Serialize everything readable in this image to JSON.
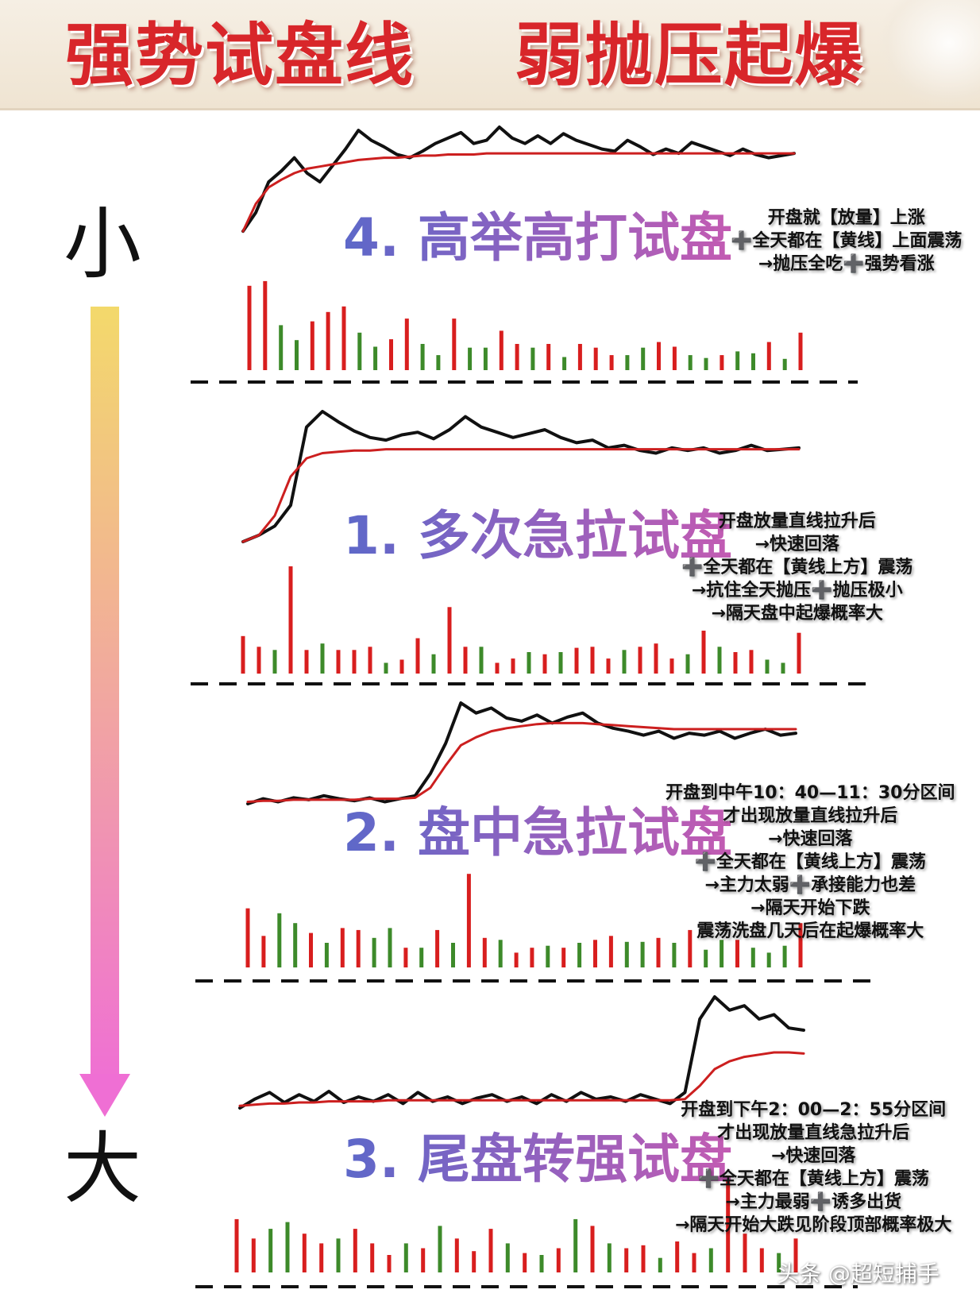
{
  "header": {
    "title_left": "强势试盘线",
    "title_right": "弱抛压起爆"
  },
  "scale": {
    "top_label": "小",
    "bottom_label": "大",
    "gradient_colors": [
      "#f3d96b",
      "#f1a7a0",
      "#ef6fd4"
    ]
  },
  "colors": {
    "price_line": "#111111",
    "avg_line": "#cc1f1f",
    "vol_up": "#d81e1e",
    "vol_down": "#3d8a2a",
    "heading_gradient": [
      "#5d68c9",
      "#c35bb2"
    ]
  },
  "chart_data": [
    {
      "type": "line",
      "heading": "4. 高举高打试盘",
      "notes": [
        "开盘就【放量】上涨",
        "➕全天都在【黄线】上面震荡",
        "→抛压全吃➕强势看涨"
      ],
      "series": [
        {
          "kind": "price",
          "values": [
            5,
            22,
            50,
            60,
            72,
            58,
            50,
            65,
            80,
            97,
            88,
            82,
            75,
            72,
            78,
            85,
            90,
            95,
            85,
            88,
            100,
            90,
            85,
            92,
            85,
            94,
            88,
            84,
            80,
            78,
            88,
            82,
            75,
            80,
            76,
            86,
            82,
            78,
            74,
            80,
            75,
            72,
            74,
            76
          ]
        },
        {
          "kind": "avg",
          "values": [
            5,
            30,
            45,
            52,
            58,
            62,
            64,
            66,
            68,
            70,
            71,
            72,
            72,
            73,
            74,
            74,
            75,
            75,
            75,
            76,
            76,
            76,
            76,
            76,
            76,
            76,
            76,
            76,
            76,
            76,
            76,
            76,
            76,
            76,
            76,
            76,
            76,
            76,
            76,
            76,
            76,
            76,
            76,
            76
          ]
        }
      ],
      "volume": [
        {
          "v": 90,
          "up": true
        },
        {
          "v": 95,
          "up": true
        },
        {
          "v": 48,
          "up": false
        },
        {
          "v": 32,
          "up": false
        },
        {
          "v": 52,
          "up": true
        },
        {
          "v": 62,
          "up": true
        },
        {
          "v": 68,
          "up": true
        },
        {
          "v": 40,
          "up": false
        },
        {
          "v": 25,
          "up": false
        },
        {
          "v": 33,
          "up": true
        },
        {
          "v": 55,
          "up": true
        },
        {
          "v": 28,
          "up": false
        },
        {
          "v": 16,
          "up": false
        },
        {
          "v": 55,
          "up": true
        },
        {
          "v": 24,
          "up": false
        },
        {
          "v": 24,
          "up": false
        },
        {
          "v": 42,
          "up": true
        },
        {
          "v": 28,
          "up": true
        },
        {
          "v": 24,
          "up": false
        },
        {
          "v": 28,
          "up": true
        },
        {
          "v": 14,
          "up": false
        },
        {
          "v": 28,
          "up": true
        },
        {
          "v": 24,
          "up": true
        },
        {
          "v": 16,
          "up": true
        },
        {
          "v": 16,
          "up": false
        },
        {
          "v": 24,
          "up": false
        },
        {
          "v": 30,
          "up": true
        },
        {
          "v": 25,
          "up": true
        },
        {
          "v": 16,
          "up": false
        },
        {
          "v": 13,
          "up": false
        },
        {
          "v": 16,
          "up": true
        },
        {
          "v": 20,
          "up": false
        },
        {
          "v": 18,
          "up": false
        },
        {
          "v": 30,
          "up": true
        },
        {
          "v": 12,
          "up": false
        },
        {
          "v": 40,
          "up": true
        }
      ]
    },
    {
      "type": "line",
      "heading": "1. 多次急拉试盘",
      "notes": [
        "开盘放量直线拉升后",
        "→快速回落",
        "➕全天都在【黄线上方】震荡",
        "→抗住全天抛压➕抛压极小",
        "→隔天盘中起爆概率大"
      ],
      "series": [
        {
          "kind": "price",
          "values": [
            0,
            5,
            12,
            28,
            88,
            100,
            92,
            85,
            80,
            78,
            82,
            84,
            79,
            86,
            96,
            88,
            84,
            80,
            83,
            86,
            80,
            76,
            78,
            72,
            74,
            70,
            68,
            72,
            70,
            72,
            68,
            70,
            74,
            70,
            71,
            72
          ]
        },
        {
          "kind": "avg",
          "values": [
            0,
            5,
            20,
            50,
            64,
            68,
            69,
            70,
            70,
            71,
            71,
            71,
            71,
            71,
            71,
            71,
            71,
            71,
            71,
            71,
            71,
            71,
            71,
            71,
            71,
            71,
            71,
            71,
            71,
            71,
            71,
            71,
            71,
            71,
            71,
            71
          ]
        }
      ],
      "volume": [
        {
          "v": 35,
          "up": true
        },
        {
          "v": 25,
          "up": true
        },
        {
          "v": 22,
          "up": false
        },
        {
          "v": 100,
          "up": true
        },
        {
          "v": 22,
          "up": true
        },
        {
          "v": 28,
          "up": false
        },
        {
          "v": 22,
          "up": true
        },
        {
          "v": 22,
          "up": true
        },
        {
          "v": 25,
          "up": true
        },
        {
          "v": 10,
          "up": false
        },
        {
          "v": 13,
          "up": true
        },
        {
          "v": 33,
          "up": true
        },
        {
          "v": 18,
          "up": false
        },
        {
          "v": 62,
          "up": true
        },
        {
          "v": 25,
          "up": true
        },
        {
          "v": 25,
          "up": false
        },
        {
          "v": 10,
          "up": true
        },
        {
          "v": 14,
          "up": true
        },
        {
          "v": 20,
          "up": false
        },
        {
          "v": 18,
          "up": true
        },
        {
          "v": 20,
          "up": false
        },
        {
          "v": 24,
          "up": true
        },
        {
          "v": 25,
          "up": true
        },
        {
          "v": 14,
          "up": true
        },
        {
          "v": 22,
          "up": false
        },
        {
          "v": 25,
          "up": true
        },
        {
          "v": 28,
          "up": true
        },
        {
          "v": 14,
          "up": true
        },
        {
          "v": 18,
          "up": false
        },
        {
          "v": 40,
          "up": true
        },
        {
          "v": 25,
          "up": false
        },
        {
          "v": 20,
          "up": true
        },
        {
          "v": 22,
          "up": true
        },
        {
          "v": 13,
          "up": false
        },
        {
          "v": 10,
          "up": false
        },
        {
          "v": 38,
          "up": true
        }
      ]
    },
    {
      "type": "line",
      "heading": "2. 盘中急拉试盘",
      "notes": [
        "开盘到中午10：40—11：30分区间",
        "才出现放量直线拉升后",
        "→快速回落",
        "➕全天都在【黄线上方】震荡",
        "→主力太弱➕承接能力也差",
        "→隔天开始下跌",
        "震荡洗盘几天后在起爆概率大"
      ],
      "series": [
        {
          "kind": "price",
          "values": [
            0,
            5,
            2,
            6,
            4,
            8,
            5,
            3,
            6,
            2,
            5,
            8,
            30,
            60,
            100,
            90,
            95,
            85,
            82,
            88,
            80,
            86,
            90,
            80,
            75,
            72,
            68,
            72,
            65,
            70,
            68,
            72,
            65,
            70,
            74,
            68,
            70
          ]
        },
        {
          "kind": "avg",
          "values": [
            2,
            3,
            3,
            4,
            4,
            4,
            4,
            4,
            5,
            5,
            5,
            6,
            16,
            38,
            58,
            66,
            72,
            75,
            77,
            79,
            80,
            80,
            80,
            79,
            78,
            77,
            76,
            75,
            74,
            74,
            74,
            74,
            74,
            74,
            74,
            74,
            74
          ]
        }
      ],
      "volume": [
        {
          "v": 60,
          "up": true
        },
        {
          "v": 32,
          "up": true
        },
        {
          "v": 55,
          "up": false
        },
        {
          "v": 45,
          "up": false
        },
        {
          "v": 35,
          "up": true
        },
        {
          "v": 25,
          "up": false
        },
        {
          "v": 40,
          "up": true
        },
        {
          "v": 38,
          "up": true
        },
        {
          "v": 30,
          "up": false
        },
        {
          "v": 40,
          "up": false
        },
        {
          "v": 20,
          "up": true
        },
        {
          "v": 20,
          "up": false
        },
        {
          "v": 38,
          "up": true
        },
        {
          "v": 25,
          "up": false
        },
        {
          "v": 95,
          "up": true
        },
        {
          "v": 30,
          "up": true
        },
        {
          "v": 28,
          "up": false
        },
        {
          "v": 15,
          "up": true
        },
        {
          "v": 20,
          "up": true
        },
        {
          "v": 22,
          "up": false
        },
        {
          "v": 20,
          "up": true
        },
        {
          "v": 25,
          "up": false
        },
        {
          "v": 28,
          "up": true
        },
        {
          "v": 32,
          "up": true
        },
        {
          "v": 26,
          "up": false
        },
        {
          "v": 26,
          "up": false
        },
        {
          "v": 30,
          "up": true
        },
        {
          "v": 25,
          "up": false
        },
        {
          "v": 38,
          "up": true
        },
        {
          "v": 18,
          "up": false
        },
        {
          "v": 28,
          "up": false
        },
        {
          "v": 28,
          "up": true
        },
        {
          "v": 20,
          "up": false
        },
        {
          "v": 15,
          "up": false
        },
        {
          "v": 22,
          "up": false
        },
        {
          "v": 45,
          "up": true
        }
      ]
    },
    {
      "type": "line",
      "heading": "3. 尾盘转强试盘",
      "notes": [
        "开盘到下午2：00—2：55分区间",
        "才出现放量直线急拉升后",
        "→快速回落",
        "➕全天都在【黄线上方】震荡",
        "→主力最弱➕诱多出货",
        "→隔天开始大跌见阶段顶部概率极大"
      ],
      "series": [
        {
          "kind": "price",
          "values": [
            0,
            8,
            14,
            5,
            12,
            6,
            15,
            5,
            10,
            6,
            12,
            4,
            14,
            6,
            10,
            4,
            9,
            12,
            6,
            10,
            4,
            12,
            6,
            14,
            8,
            10,
            6,
            12,
            8,
            4,
            14,
            80,
            100,
            88,
            92,
            80,
            84,
            72,
            70
          ]
        },
        {
          "kind": "avg",
          "values": [
            2,
            3,
            4,
            4,
            5,
            5,
            6,
            6,
            6,
            6,
            7,
            7,
            7,
            7,
            7,
            7,
            7,
            7,
            7,
            7,
            7,
            7,
            7,
            7,
            7,
            7,
            7,
            7,
            7,
            7,
            8,
            20,
            35,
            42,
            46,
            48,
            50,
            50,
            49
          ]
        }
      ],
      "volume": [
        {
          "v": 55,
          "up": true
        },
        {
          "v": 35,
          "up": true
        },
        {
          "v": 45,
          "up": false
        },
        {
          "v": 52,
          "up": false
        },
        {
          "v": 40,
          "up": true
        },
        {
          "v": 30,
          "up": true
        },
        {
          "v": 35,
          "up": false
        },
        {
          "v": 45,
          "up": true
        },
        {
          "v": 30,
          "up": true
        },
        {
          "v": 18,
          "up": true
        },
        {
          "v": 30,
          "up": false
        },
        {
          "v": 25,
          "up": true
        },
        {
          "v": 48,
          "up": false
        },
        {
          "v": 35,
          "up": true
        },
        {
          "v": 22,
          "up": true
        },
        {
          "v": 45,
          "up": true
        },
        {
          "v": 30,
          "up": false
        },
        {
          "v": 20,
          "up": true
        },
        {
          "v": 18,
          "up": false
        },
        {
          "v": 25,
          "up": true
        },
        {
          "v": 55,
          "up": false
        },
        {
          "v": 48,
          "up": true
        },
        {
          "v": 30,
          "up": false
        },
        {
          "v": 25,
          "up": true
        },
        {
          "v": 28,
          "up": true
        },
        {
          "v": 15,
          "up": false
        },
        {
          "v": 32,
          "up": true
        },
        {
          "v": 20,
          "up": true
        },
        {
          "v": 25,
          "up": false
        },
        {
          "v": 100,
          "up": true
        },
        {
          "v": 40,
          "up": true
        },
        {
          "v": 25,
          "up": true
        },
        {
          "v": 20,
          "up": false
        },
        {
          "v": 35,
          "up": true
        }
      ]
    }
  ],
  "watermark": "头条 @超短捕手"
}
